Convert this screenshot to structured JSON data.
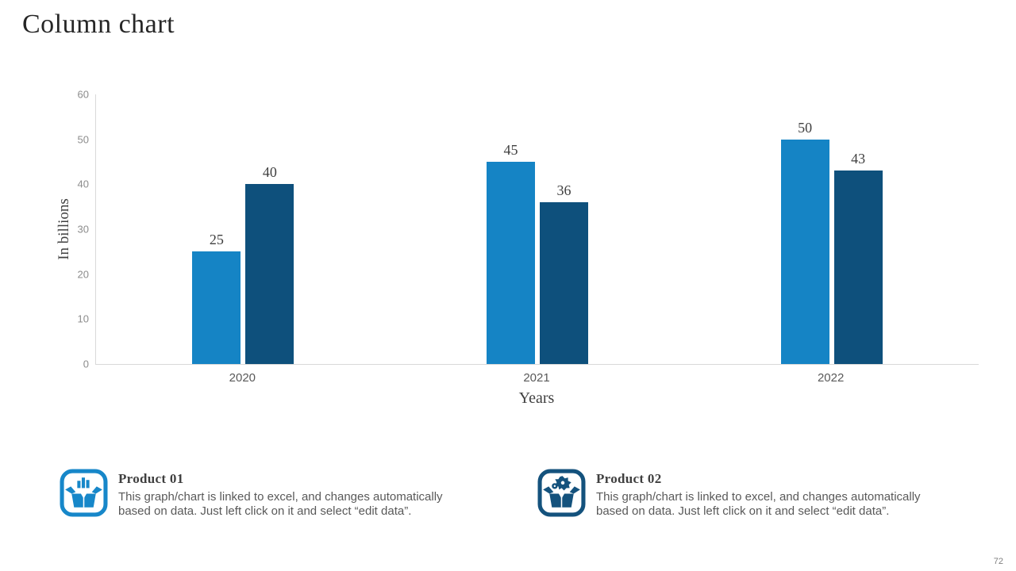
{
  "slide": {
    "title": "Column chart",
    "page_number": "72"
  },
  "chart_data": {
    "type": "bar",
    "title": "Column chart",
    "categories": [
      "2020",
      "2021",
      "2022"
    ],
    "series": [
      {
        "name": "Product 01",
        "color": "#1584C5",
        "values": [
          25,
          45,
          50
        ]
      },
      {
        "name": "Product 02",
        "color": "#0E507C",
        "values": [
          40,
          36,
          43
        ]
      }
    ],
    "xlabel": "Years",
    "ylabel": "In billions",
    "ylim": [
      0,
      60
    ],
    "yticks": [
      0,
      10,
      20,
      30,
      40,
      50,
      60
    ],
    "grid": false,
    "legend_position": "bottom"
  },
  "legend": {
    "items": [
      {
        "title": "Product 01",
        "icon": "product-box-bars-icon",
        "color": "#1787C9",
        "description_lines": [
          "This graph/chart is linked to excel, and changes automatically",
          "based on data. Just left click on it and select “edit data”."
        ]
      },
      {
        "title": "Product 02",
        "icon": "product-box-gear-icon",
        "color": "#14527D",
        "description_lines": [
          "This graph/chart is linked to excel, and changes automatically",
          "based on data. Just left click on it and select “edit data”."
        ]
      }
    ]
  }
}
